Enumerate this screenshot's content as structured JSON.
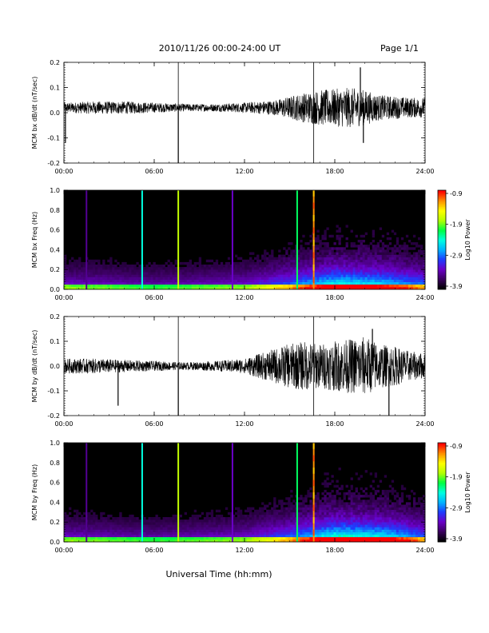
{
  "header": {
    "title": "2010/11/26  00:00-24:00 UT",
    "page": "Page 1/1"
  },
  "footer": {
    "xlabel": "Universal Time (hh:mm)"
  },
  "colors": {
    "trace": "#000000",
    "colormap": [
      "#000000",
      "#3b0060",
      "#6a00c8",
      "#1e3cff",
      "#00b4ff",
      "#00ffe0",
      "#00ff40",
      "#b4ff00",
      "#ffff00",
      "#ff9000",
      "#ff0000"
    ]
  },
  "chart_data": [
    {
      "type": "line",
      "ylabel": "MCM bx dB/dt (nT/sec)",
      "xlim": [
        0,
        24
      ],
      "ylim": [
        -0.2,
        0.2
      ],
      "xticks": [
        "00:00",
        "06:00",
        "12:00",
        "18:00",
        "24:00"
      ],
      "yticks": [
        "-0.2",
        "-0.1",
        "0.0",
        "0.1",
        "0.2"
      ],
      "baseline": 0.02,
      "envelope": [
        [
          0,
          0.02
        ],
        [
          2,
          0.025
        ],
        [
          4,
          0.025
        ],
        [
          6,
          0.02
        ],
        [
          8,
          0.015
        ],
        [
          10,
          0.015
        ],
        [
          12,
          0.02
        ],
        [
          14,
          0.03
        ],
        [
          15,
          0.045
        ],
        [
          16,
          0.06
        ],
        [
          17,
          0.07
        ],
        [
          18,
          0.075
        ],
        [
          19,
          0.08
        ],
        [
          20,
          0.07
        ],
        [
          21,
          0.05
        ],
        [
          22,
          0.045
        ],
        [
          23,
          0.04
        ],
        [
          24,
          0.04
        ]
      ],
      "vertical_lines": [
        7.6,
        16.6
      ],
      "spikes": [
        {
          "x": 7.6,
          "y": -0.2
        },
        {
          "x": 0.1,
          "y": -0.12
        },
        {
          "x": 19.7,
          "y": 0.18
        },
        {
          "x": 19.9,
          "y": -0.12
        }
      ]
    },
    {
      "type": "heatmap",
      "ylabel": "MCM bx Freq (Hz)",
      "xlim": [
        0,
        24
      ],
      "ylim": [
        0,
        1.0
      ],
      "xticks": [
        "00:00",
        "06:00",
        "12:00",
        "18:00",
        "24:00"
      ],
      "yticks": [
        "0.0",
        "0.2",
        "0.4",
        "0.6",
        "0.8",
        "1.0"
      ],
      "colorbar": {
        "label": "Log10 Power",
        "ticks": [
          "-0.9",
          "-1.9",
          "-2.9",
          "-3.9"
        ],
        "range": [
          -3.9,
          -0.9
        ]
      },
      "vertical_bands": [
        {
          "x": 1.5,
          "level": 0.15
        },
        {
          "x": 5.2,
          "level": 0.5
        },
        {
          "x": 7.6,
          "level": 0.72
        },
        {
          "x": 11.2,
          "level": 0.2
        },
        {
          "x": 15.5,
          "level": 0.58
        },
        {
          "x": 16.6,
          "level": 0.9
        }
      ],
      "activity": [
        [
          0,
          0.25
        ],
        [
          6,
          0.2
        ],
        [
          12,
          0.25
        ],
        [
          15,
          0.4
        ],
        [
          18,
          0.6
        ],
        [
          21,
          0.55
        ],
        [
          24,
          0.4
        ]
      ]
    },
    {
      "type": "line",
      "ylabel": "MCM by dB/dt (nT/sec)",
      "xlim": [
        0,
        24
      ],
      "ylim": [
        -0.2,
        0.2
      ],
      "xticks": [
        "00:00",
        "06:00",
        "12:00",
        "18:00",
        "24:00"
      ],
      "yticks": [
        "-0.2",
        "-0.1",
        "0.0",
        "0.1",
        "0.2"
      ],
      "baseline": 0.0,
      "envelope": [
        [
          0,
          0.03
        ],
        [
          2,
          0.03
        ],
        [
          4,
          0.025
        ],
        [
          6,
          0.02
        ],
        [
          8,
          0.015
        ],
        [
          10,
          0.02
        ],
        [
          12,
          0.03
        ],
        [
          13,
          0.05
        ],
        [
          14,
          0.07
        ],
        [
          15,
          0.09
        ],
        [
          16,
          0.1
        ],
        [
          17,
          0.09
        ],
        [
          18,
          0.1
        ],
        [
          19,
          0.11
        ],
        [
          20,
          0.12
        ],
        [
          21,
          0.09
        ],
        [
          22,
          0.08
        ],
        [
          23,
          0.06
        ],
        [
          24,
          0.05
        ]
      ],
      "vertical_lines": [
        7.6,
        16.6
      ],
      "spikes": [
        {
          "x": 7.6,
          "y": -0.2
        },
        {
          "x": 3.6,
          "y": -0.16
        },
        {
          "x": 21.6,
          "y": -0.2
        },
        {
          "x": 20.5,
          "y": 0.15
        }
      ]
    },
    {
      "type": "heatmap",
      "ylabel": "MCM by Freq (Hz)",
      "xlim": [
        0,
        24
      ],
      "ylim": [
        0,
        1.0
      ],
      "xticks": [
        "00:00",
        "06:00",
        "12:00",
        "18:00",
        "24:00"
      ],
      "yticks": [
        "0.0",
        "0.2",
        "0.4",
        "0.6",
        "0.8",
        "1.0"
      ],
      "colorbar": {
        "label": "Log10 Power",
        "ticks": [
          "-0.9",
          "-1.9",
          "-2.9",
          "-3.9"
        ],
        "range": [
          -3.9,
          -0.9
        ]
      },
      "vertical_bands": [
        {
          "x": 1.5,
          "level": 0.15
        },
        {
          "x": 5.2,
          "level": 0.5
        },
        {
          "x": 7.6,
          "level": 0.72
        },
        {
          "x": 11.2,
          "level": 0.2
        },
        {
          "x": 15.5,
          "level": 0.58
        },
        {
          "x": 16.6,
          "level": 0.9
        }
      ],
      "activity": [
        [
          0,
          0.25
        ],
        [
          6,
          0.2
        ],
        [
          12,
          0.25
        ],
        [
          15,
          0.4
        ],
        [
          18,
          0.65
        ],
        [
          21,
          0.6
        ],
        [
          24,
          0.4
        ]
      ]
    }
  ]
}
